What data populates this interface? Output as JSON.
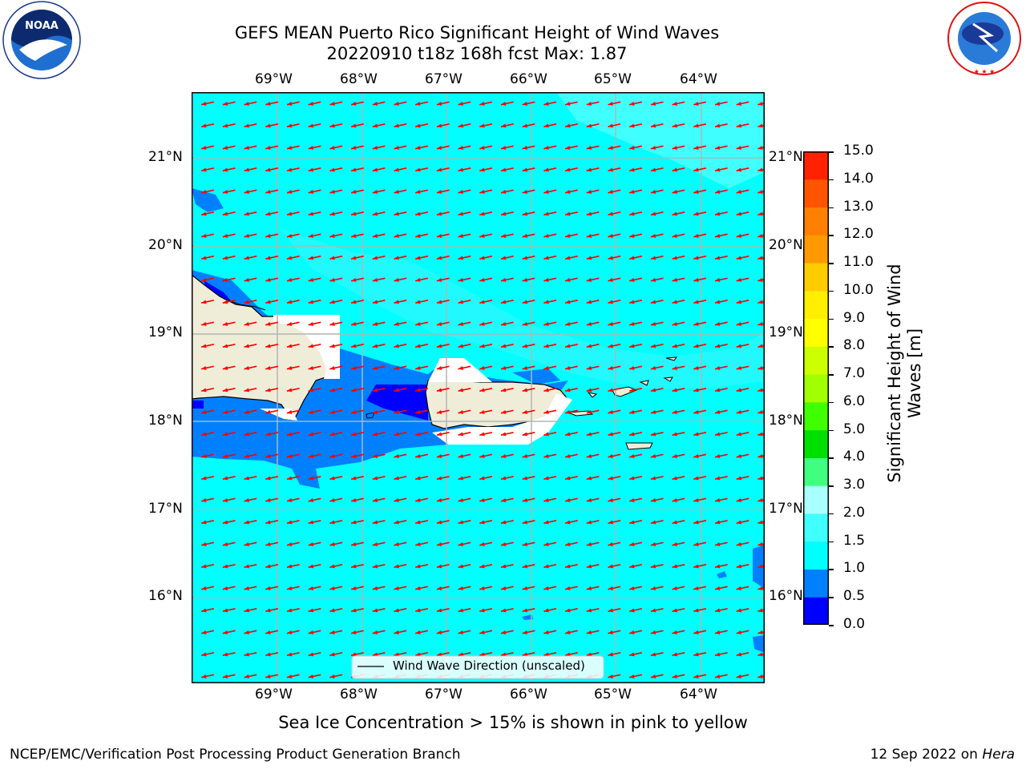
{
  "header": {
    "title_line1": "GEFS MEAN Puerto Rico Significant Height of Wind Waves",
    "title_line2": "20220910 t18z 168h fcst   Max: 1.87"
  },
  "logos": {
    "left": "NOAA logo",
    "left_text": "NOAA",
    "left_ring_text": "NATIONAL OCEANIC AND ATMOSPHERIC ADMINISTRATION · U.S. DEPARTMENT OF COMMERCE",
    "right": "National Weather Service logo",
    "right_ring_text": "NATIONAL WEATHER SERVICE"
  },
  "map": {
    "lon_labels": [
      "69°W",
      "68°W",
      "67°W",
      "66°W",
      "65°W",
      "64°W"
    ],
    "lat_labels": [
      "21°N",
      "20°N",
      "19°N",
      "18°N",
      "17°N",
      "16°N"
    ],
    "legend_label": "Wind Wave Direction (unscaled)",
    "colors": {
      "ocean_1_0_1_5": "#00ffff",
      "ocean_1_5_2_0": "#40ffff",
      "band_0_5_1_0": "#0080ff",
      "band_0_0_0_5": "#0000ff",
      "land": "#efedd8",
      "arrow": "#ff0000"
    }
  },
  "colorbar": {
    "label": "Significant Height of Wind Waves [m]",
    "label_line1": "Significant Height of Wind",
    "label_line2": "Waves [m]",
    "ticks": [
      "0.0",
      "0.5",
      "1.0",
      "1.5",
      "2.0",
      "3.0",
      "4.0",
      "5.0",
      "6.0",
      "7.0",
      "8.0",
      "9.0",
      "10.0",
      "11.0",
      "12.0",
      "13.0",
      "14.0",
      "15.0"
    ],
    "colors": [
      "#0000ff",
      "#0080ff",
      "#00ffff",
      "#40ffff",
      "#aaffff",
      "#40ff80",
      "#00e000",
      "#40ff00",
      "#a0ff00",
      "#ccff00",
      "#ffff00",
      "#ffee00",
      "#ffcc00",
      "#ff9900",
      "#ff8000",
      "#ff5500",
      "#ff2200",
      "#ff0000"
    ]
  },
  "notes": {
    "sea_ice": "Sea Ice Concentration > 15% is shown in pink to yellow",
    "footer_left": "NCEP/EMC/Verification Post Processing Product Generation Branch",
    "footer_right_prefix": "12 Sep 2022 on ",
    "footer_right_host": "Hera"
  }
}
